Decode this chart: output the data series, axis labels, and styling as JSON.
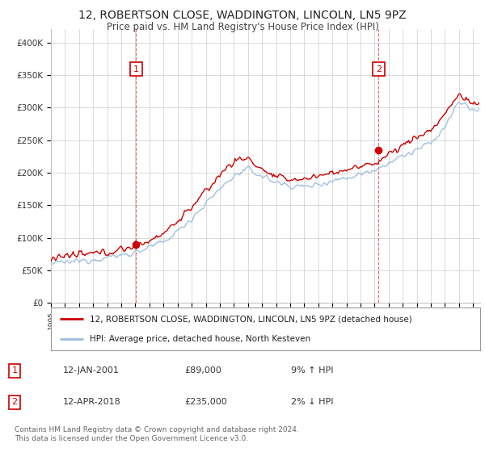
{
  "title": "12, ROBERTSON CLOSE, WADDINGTON, LINCOLN, LN5 9PZ",
  "subtitle": "Price paid vs. HM Land Registry's House Price Index (HPI)",
  "ylabel_ticks": [
    "£0",
    "£50K",
    "£100K",
    "£150K",
    "£200K",
    "£250K",
    "£300K",
    "£350K",
    "£400K"
  ],
  "ytick_values": [
    0,
    50000,
    100000,
    150000,
    200000,
    250000,
    300000,
    350000,
    400000
  ],
  "ylim": [
    0,
    420000
  ],
  "xlim_start": 1995.0,
  "xlim_end": 2025.5,
  "point1_x": 2001.04,
  "point1_y": 89000,
  "point2_x": 2018.29,
  "point2_y": 235000,
  "point1_label": "1",
  "point2_label": "2",
  "vline1_x": 2001.04,
  "vline2_x": 2018.29,
  "legend_property_label": "12, ROBERTSON CLOSE, WADDINGTON, LINCOLN, LN5 9PZ (detached house)",
  "legend_hpi_label": "HPI: Average price, detached house, North Kesteven",
  "table_row1": [
    "1",
    "12-JAN-2001",
    "£89,000",
    "9% ↑ HPI"
  ],
  "table_row2": [
    "2",
    "12-APR-2018",
    "£235,000",
    "2% ↓ HPI"
  ],
  "footer": "Contains HM Land Registry data © Crown copyright and database right 2024.\nThis data is licensed under the Open Government Licence v3.0.",
  "line_property_color": "#cc0000",
  "line_hpi_color": "#99bbdd",
  "background_color": "#ffffff",
  "title_fontsize": 10,
  "subtitle_fontsize": 8.5,
  "tick_fontsize": 7.5
}
